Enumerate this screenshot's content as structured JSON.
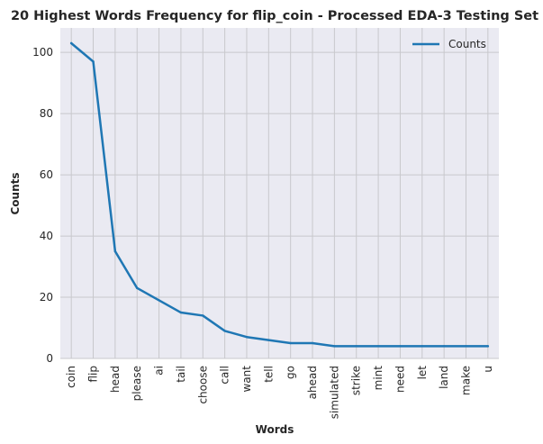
{
  "chart_data": {
    "type": "line",
    "title": "20 Highest Words Frequency for flip_coin - Processed EDA-3 Testing Set",
    "xlabel": "Words",
    "ylabel": "Counts",
    "categories": [
      "coin",
      "flip",
      "head",
      "please",
      "ai",
      "tail",
      "choose",
      "call",
      "want",
      "tell",
      "go",
      "ahead",
      "simulated",
      "strike",
      "mint",
      "need",
      "let",
      "land",
      "make",
      "u"
    ],
    "series": [
      {
        "name": "Counts",
        "values": [
          103,
          97,
          35,
          23,
          19,
          15,
          14,
          9,
          7,
          6,
          5,
          5,
          4,
          4,
          4,
          4,
          4,
          4,
          4,
          4
        ]
      }
    ],
    "ylim": [
      0,
      108
    ],
    "yticks": [
      0,
      20,
      40,
      60,
      80,
      100
    ],
    "grid": true,
    "legend_position": "top-right",
    "colors": {
      "line": "#1f77b4",
      "plot_bg": "#eaeaf2",
      "grid": "#c8c8cc"
    }
  }
}
